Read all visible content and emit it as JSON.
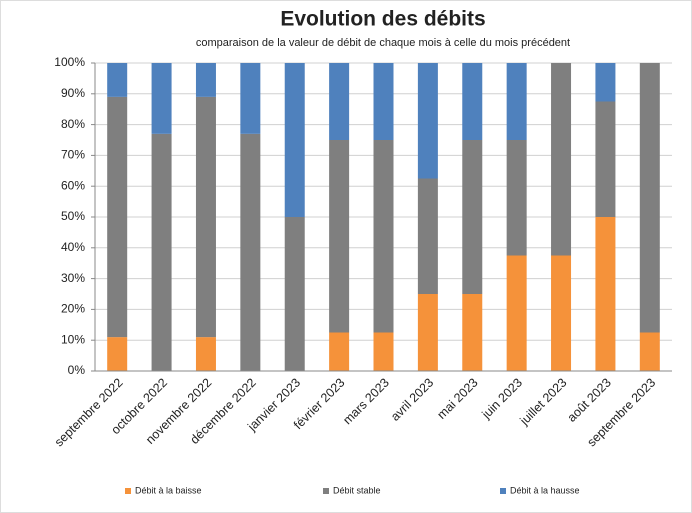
{
  "chart_data": {
    "type": "stacked_bar",
    "title": "Evolution des débits",
    "subtitle": "comparaison de la valeur de débit de chaque mois à celle du mois précédent",
    "categories": [
      "septembre 2022",
      "octobre 2022",
      "novembre 2022",
      "décembre 2022",
      "janvier 2023",
      "février 2023",
      "mars 2023",
      "avril 2023",
      "mai 2023",
      "juin 2023",
      "juillet 2023",
      "août 2023",
      "septembre 2023"
    ],
    "series": [
      {
        "name": "Débit à la baisse",
        "color": "#f5923a",
        "values": [
          11,
          0,
          11,
          0,
          0,
          12.5,
          12.5,
          25,
          25,
          37.5,
          37.5,
          50,
          12.5
        ]
      },
      {
        "name": "Débit stable",
        "color": "#7f7f7f",
        "values": [
          78,
          77,
          78,
          77,
          50,
          62.5,
          62.5,
          37.5,
          50,
          37.5,
          62.5,
          37.5,
          87.5
        ]
      },
      {
        "name": "Débit à la hausse",
        "color": "#4f81bd",
        "values": [
          11,
          23,
          11,
          23,
          50,
          25,
          25,
          37.5,
          25,
          25,
          0,
          12.5,
          0
        ]
      }
    ],
    "ylim": [
      0,
      100
    ],
    "yticks": [
      {
        "value": 0,
        "label": "0%"
      },
      {
        "value": 10,
        "label": "10%"
      },
      {
        "value": 20,
        "label": "20%"
      },
      {
        "value": 30,
        "label": "30%"
      },
      {
        "value": 40,
        "label": "40%"
      },
      {
        "value": 50,
        "label": "50%"
      },
      {
        "value": 60,
        "label": "60%"
      },
      {
        "value": 70,
        "label": "70%"
      },
      {
        "value": 80,
        "label": "80%"
      },
      {
        "value": 90,
        "label": "90%"
      },
      {
        "value": 100,
        "label": "100%"
      }
    ],
    "grid": true,
    "legend": "bottom"
  }
}
